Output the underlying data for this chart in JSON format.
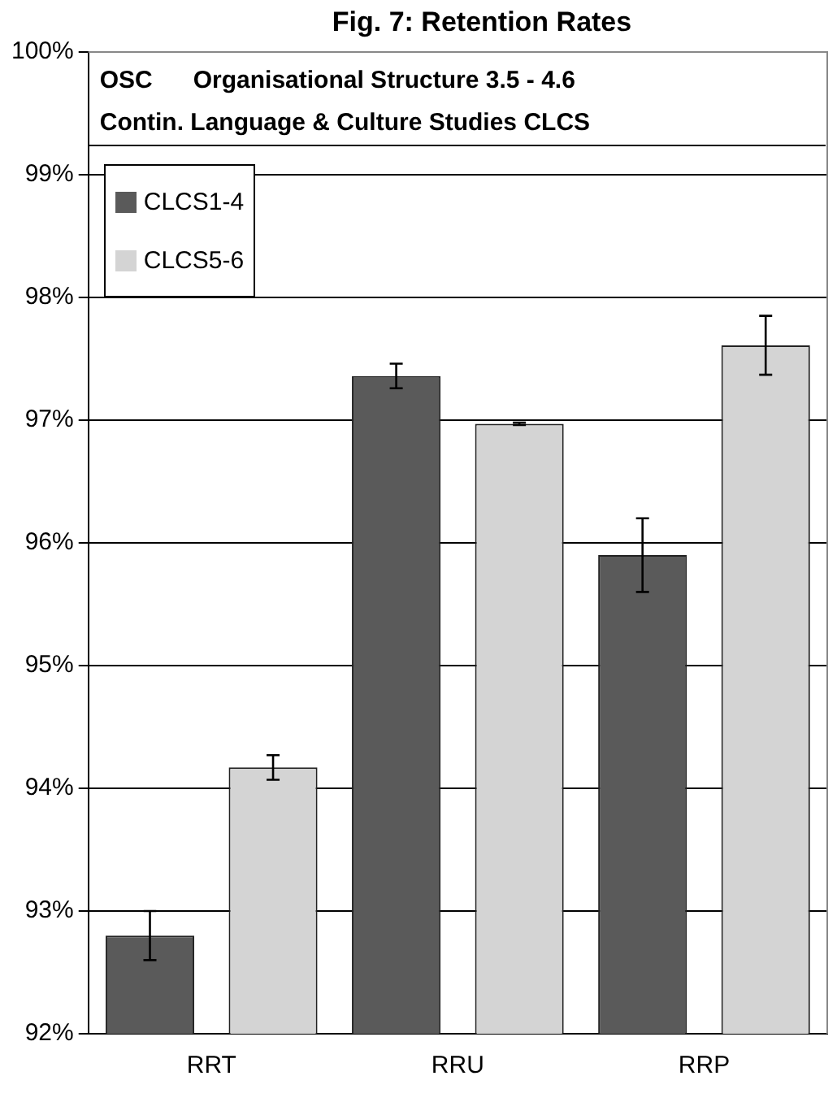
{
  "chart_data": {
    "type": "bar",
    "title": "Fig. 7: Retention Rates",
    "annotations": [
      "OSC      Organisational Structure 3.5 - 4.6",
      "Contin. Language & Culture Studies CLCS"
    ],
    "categories": [
      "RRT",
      "RRU",
      "RRP"
    ],
    "series": [
      {
        "name": "CLCS1-4",
        "color": "#5a5a5a",
        "values": [
          92.8,
          97.36,
          95.9
        ],
        "errors": [
          0.2,
          0.1,
          0.3
        ]
      },
      {
        "name": "CLCS5-6",
        "color": "#d4d4d4",
        "values": [
          94.17,
          96.97,
          97.61
        ],
        "errors": [
          0.1,
          0.01,
          0.24
        ]
      }
    ],
    "ylim": [
      92,
      100
    ],
    "yticks": [
      {
        "value": 92,
        "label": "92%"
      },
      {
        "value": 93,
        "label": "93%"
      },
      {
        "value": 94,
        "label": "94%"
      },
      {
        "value": 95,
        "label": "95%"
      },
      {
        "value": 96,
        "label": "96%"
      },
      {
        "value": 97,
        "label": "97%"
      },
      {
        "value": 98,
        "label": "98%"
      },
      {
        "value": 99,
        "label": "99%"
      },
      {
        "value": 100,
        "label": "100%"
      }
    ],
    "grid": "y",
    "legend": "top left"
  }
}
